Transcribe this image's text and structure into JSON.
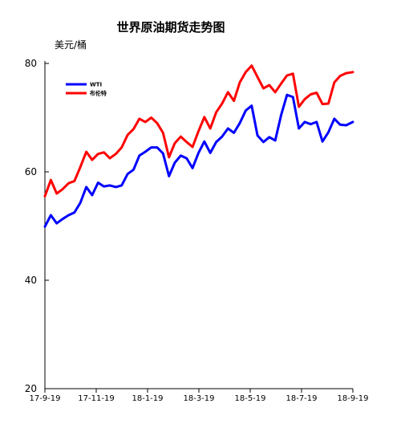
{
  "chart_data": {
    "type": "line",
    "title": "世界原油期货走势图",
    "ylabel": "美元/桶",
    "xlabel": "",
    "ylim": [
      20,
      80
    ],
    "yticks": [
      20,
      40,
      60,
      80
    ],
    "x_tick_labels": [
      "17-9-19",
      "17-11-19",
      "18-1-19",
      "18-3-19",
      "18-5-19",
      "18-7-19",
      "18-9-19"
    ],
    "x_range": [
      "2017-09-19",
      "2018-09-19"
    ],
    "grid": false,
    "legend_position": "upper-left",
    "series": [
      {
        "name": "WTI",
        "color": "#0000ff",
        "points": [
          [
            "2017-09-19",
            49.9
          ],
          [
            "2017-09-26",
            52.0
          ],
          [
            "2017-10-03",
            50.5
          ],
          [
            "2017-10-10",
            51.3
          ],
          [
            "2017-10-17",
            52.0
          ],
          [
            "2017-10-24",
            52.5
          ],
          [
            "2017-10-31",
            54.3
          ],
          [
            "2017-11-07",
            57.2
          ],
          [
            "2017-11-14",
            55.7
          ],
          [
            "2017-11-21",
            58.0
          ],
          [
            "2017-11-28",
            57.3
          ],
          [
            "2017-12-05",
            57.5
          ],
          [
            "2017-12-12",
            57.2
          ],
          [
            "2017-12-19",
            57.5
          ],
          [
            "2017-12-26",
            59.6
          ],
          [
            "2018-01-02",
            60.4
          ],
          [
            "2018-01-09",
            63.0
          ],
          [
            "2018-01-16",
            63.7
          ],
          [
            "2018-01-23",
            64.5
          ],
          [
            "2018-01-30",
            64.5
          ],
          [
            "2018-02-06",
            63.4
          ],
          [
            "2018-02-13",
            59.2
          ],
          [
            "2018-02-20",
            61.7
          ],
          [
            "2018-02-27",
            63.0
          ],
          [
            "2018-03-06",
            62.5
          ],
          [
            "2018-03-13",
            60.7
          ],
          [
            "2018-03-20",
            63.5
          ],
          [
            "2018-03-27",
            65.6
          ],
          [
            "2018-04-03",
            63.5
          ],
          [
            "2018-04-10",
            65.5
          ],
          [
            "2018-04-17",
            66.5
          ],
          [
            "2018-04-24",
            68.0
          ],
          [
            "2018-05-01",
            67.2
          ],
          [
            "2018-05-08",
            69.0
          ],
          [
            "2018-05-15",
            71.3
          ],
          [
            "2018-05-22",
            72.2
          ],
          [
            "2018-05-29",
            66.7
          ],
          [
            "2018-06-05",
            65.5
          ],
          [
            "2018-06-12",
            66.4
          ],
          [
            "2018-06-19",
            65.8
          ],
          [
            "2018-06-26",
            70.5
          ],
          [
            "2018-07-03",
            74.2
          ],
          [
            "2018-07-10",
            73.8
          ],
          [
            "2018-07-17",
            68.0
          ],
          [
            "2018-07-24",
            69.2
          ],
          [
            "2018-07-31",
            68.8
          ],
          [
            "2018-08-07",
            69.2
          ],
          [
            "2018-08-14",
            65.6
          ],
          [
            "2018-08-21",
            67.3
          ],
          [
            "2018-08-28",
            69.8
          ],
          [
            "2018-09-04",
            68.7
          ],
          [
            "2018-09-11",
            68.6
          ],
          [
            "2018-09-19",
            69.2
          ]
        ]
      },
      {
        "name": "布伦特",
        "color": "#ff0000",
        "points": [
          [
            "2017-09-19",
            55.5
          ],
          [
            "2017-09-26",
            58.5
          ],
          [
            "2017-10-03",
            56.0
          ],
          [
            "2017-10-10",
            56.8
          ],
          [
            "2017-10-17",
            57.9
          ],
          [
            "2017-10-24",
            58.3
          ],
          [
            "2017-10-31",
            60.9
          ],
          [
            "2017-11-07",
            63.7
          ],
          [
            "2017-11-14",
            62.2
          ],
          [
            "2017-11-21",
            63.3
          ],
          [
            "2017-11-28",
            63.6
          ],
          [
            "2017-12-05",
            62.5
          ],
          [
            "2017-12-12",
            63.3
          ],
          [
            "2017-12-19",
            64.5
          ],
          [
            "2017-12-26",
            66.8
          ],
          [
            "2018-01-02",
            67.9
          ],
          [
            "2018-01-09",
            69.8
          ],
          [
            "2018-01-16",
            69.2
          ],
          [
            "2018-01-23",
            70.0
          ],
          [
            "2018-01-30",
            69.0
          ],
          [
            "2018-02-06",
            67.2
          ],
          [
            "2018-02-13",
            62.7
          ],
          [
            "2018-02-20",
            65.3
          ],
          [
            "2018-02-27",
            66.5
          ],
          [
            "2018-03-06",
            65.5
          ],
          [
            "2018-03-13",
            64.6
          ],
          [
            "2018-03-20",
            67.5
          ],
          [
            "2018-03-27",
            70.1
          ],
          [
            "2018-04-03",
            68.0
          ],
          [
            "2018-04-10",
            71.0
          ],
          [
            "2018-04-17",
            72.6
          ],
          [
            "2018-04-24",
            74.7
          ],
          [
            "2018-05-01",
            73.1
          ],
          [
            "2018-05-08",
            76.5
          ],
          [
            "2018-05-15",
            78.4
          ],
          [
            "2018-05-22",
            79.6
          ],
          [
            "2018-05-29",
            77.5
          ],
          [
            "2018-06-05",
            75.4
          ],
          [
            "2018-06-12",
            76.0
          ],
          [
            "2018-06-19",
            74.7
          ],
          [
            "2018-06-26",
            76.3
          ],
          [
            "2018-07-03",
            77.8
          ],
          [
            "2018-07-10",
            78.1
          ],
          [
            "2018-07-17",
            72.0
          ],
          [
            "2018-07-24",
            73.4
          ],
          [
            "2018-07-31",
            74.3
          ],
          [
            "2018-08-07",
            74.6
          ],
          [
            "2018-08-14",
            72.5
          ],
          [
            "2018-08-21",
            72.6
          ],
          [
            "2018-08-28",
            76.5
          ],
          [
            "2018-09-04",
            77.7
          ],
          [
            "2018-09-11",
            78.2
          ],
          [
            "2018-09-19",
            78.4
          ]
        ]
      }
    ]
  }
}
